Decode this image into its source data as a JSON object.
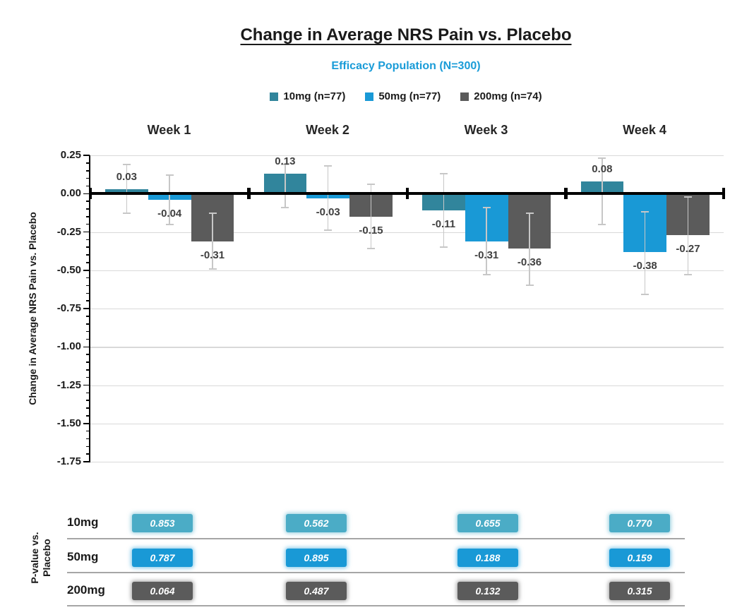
{
  "chart_data": {
    "type": "bar",
    "title": "Change in Average NRS Pain vs. Placebo",
    "subtitle": "Efficacy Population (N=300)",
    "subtitle_color": "#1a9cd8",
    "categories": [
      "Week 1",
      "Week 2",
      "Week 3",
      "Week 4"
    ],
    "xlabel": "",
    "ylabel": "Change in Average NRS Pain vs. Placebo",
    "ylim": [
      -1.75,
      0.25
    ],
    "ytick_step": 0.25,
    "yminor_step": 0.05,
    "grid": true,
    "legend_position": "top",
    "error_bar_color": "#c7c7c7",
    "gridline_color": "#d9d9d9",
    "series": [
      {
        "name": "10mg (n=77)",
        "color": "#31859C",
        "values": [
          0.03,
          0.13,
          -0.11,
          0.08
        ],
        "err_hi": [
          0.19,
          0.19,
          0.13,
          0.23
        ],
        "err_lo": [
          -0.13,
          -0.09,
          -0.35,
          -0.2
        ]
      },
      {
        "name": "50mg (n=77)",
        "color": "#1999D6",
        "values": [
          -0.04,
          -0.03,
          -0.31,
          -0.38
        ],
        "err_hi": [
          0.12,
          0.18,
          -0.09,
          -0.12
        ],
        "err_lo": [
          -0.2,
          -0.24,
          -0.53,
          -0.66
        ]
      },
      {
        "name": "200mg (n=74)",
        "color": "#5B5B5B",
        "values": [
          -0.31,
          -0.15,
          -0.36,
          -0.27
        ],
        "err_hi": [
          -0.13,
          0.06,
          -0.13,
          -0.02
        ],
        "err_lo": [
          -0.49,
          -0.36,
          -0.6,
          -0.53
        ]
      }
    ]
  },
  "pvalue_table": {
    "row_axis_label": [
      "P-value vs.",
      "Placebo"
    ],
    "columns": [
      "Week 1",
      "Week 2",
      "Week 3",
      "Week 4"
    ],
    "rows": [
      {
        "label": "10mg",
        "color": "#4BACC6",
        "values": [
          "0.853",
          "0.562",
          "0.655",
          "0.770"
        ]
      },
      {
        "label": "50mg",
        "color": "#1999D6",
        "values": [
          "0.787",
          "0.895",
          "0.188",
          "0.159"
        ]
      },
      {
        "label": "200mg",
        "color": "#5B5B5B",
        "values": [
          "0.064",
          "0.487",
          "0.132",
          "0.315"
        ]
      }
    ]
  }
}
